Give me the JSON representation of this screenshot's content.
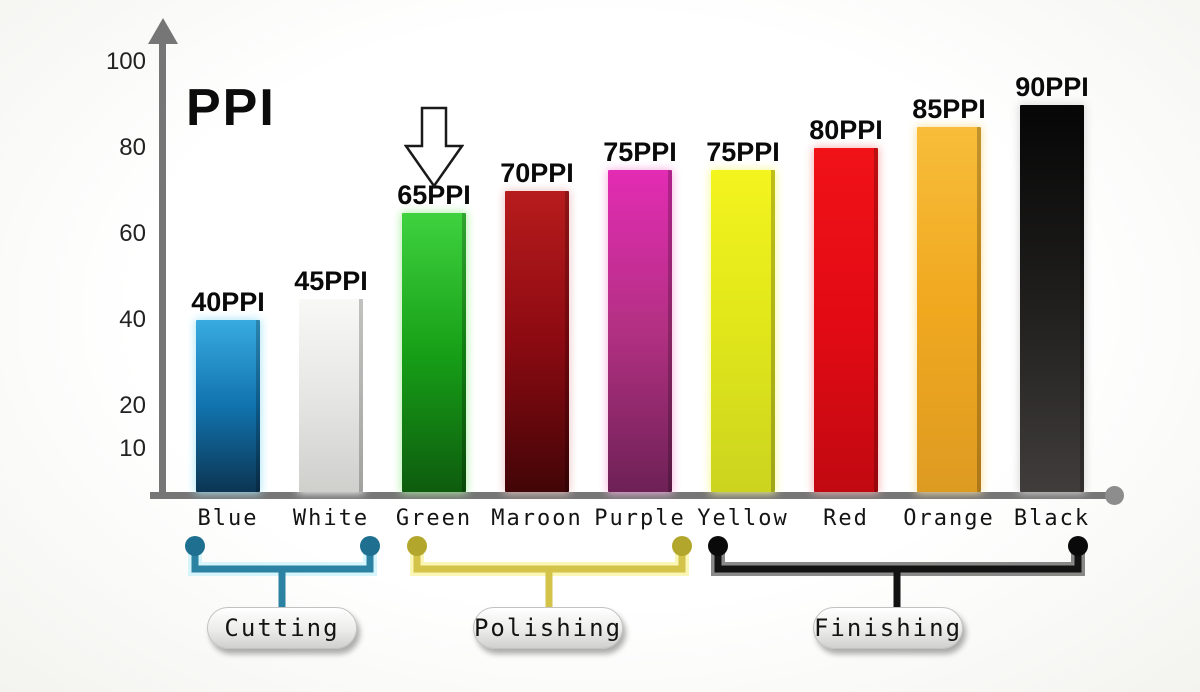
{
  "chart_data": {
    "type": "bar",
    "title": "PPI",
    "ylabel": "PPI",
    "xlabel": "",
    "ylim": [
      0,
      100
    ],
    "y_ticks": [
      100,
      80,
      60,
      40,
      20,
      10
    ],
    "grid": false,
    "legend_position": "none",
    "categories": [
      "Blue",
      "White",
      "Green",
      "Maroon",
      "Purple",
      "Yellow",
      "Red",
      "Orange",
      "Black"
    ],
    "values": [
      40,
      45,
      65,
      70,
      75,
      75,
      80,
      85,
      90
    ],
    "bars": [
      {
        "name": "Blue",
        "value": 40,
        "label": "40PPI",
        "color_top": "#38abdf",
        "color_mid": "#1173ae",
        "color_bottom": "#0c3553",
        "glow": "#aee7f8"
      },
      {
        "name": "White",
        "value": 45,
        "label": "45PPI",
        "color_top": "#f8f8f6",
        "color_mid": "#e6e6e4",
        "color_bottom": "#cfcfcc",
        "glow": "#ffffff"
      },
      {
        "name": "Green",
        "value": 65,
        "label": "65PPI",
        "color_top": "#3fd23f",
        "color_mid": "#17a017",
        "color_bottom": "#0e5c0e",
        "glow": "#b0f0a8"
      },
      {
        "name": "Maroon",
        "value": 70,
        "label": "70PPI",
        "color_top": "#b71c1c",
        "color_mid": "#8c0a12",
        "color_bottom": "#420507",
        "glow": "#eec8c8"
      },
      {
        "name": "Purple",
        "value": 75,
        "label": "75PPI",
        "color_top": "#e32cb4",
        "color_mid": "#b23082",
        "color_bottom": "#6e2156",
        "glow": "#f9b6e4"
      },
      {
        "name": "Yellow",
        "value": 75,
        "label": "75PPI",
        "color_top": "#f4f41e",
        "color_mid": "#e0e61a",
        "color_bottom": "#ccd41f",
        "glow": "#fafa9c"
      },
      {
        "name": "Red",
        "value": 80,
        "label": "80PPI",
        "color_top": "#f01217",
        "color_mid": "#e30a14",
        "color_bottom": "#c10911",
        "glow": "#f8b4b4"
      },
      {
        "name": "Orange",
        "value": 85,
        "label": "85PPI",
        "color_top": "#f8bd3a",
        "color_mid": "#f0a81f",
        "color_bottom": "#de9b22",
        "glow": "#fce4a6"
      },
      {
        "name": "Black",
        "value": 90,
        "label": "90PPI",
        "color_top": "#060606",
        "color_mid": "#1f1e1d",
        "color_bottom": "#403d3c",
        "glow": "#d8d8d8"
      }
    ],
    "annotations": [
      {
        "type": "down-arrow",
        "target": "Green",
        "style": "hollow-outline"
      }
    ],
    "groups": [
      {
        "label": "Cutting",
        "members": [
          "Blue",
          "White"
        ],
        "color": "#2b82a2",
        "glow": "#b6ecfa",
        "dot_color": "#1e6f90"
      },
      {
        "label": "Polishing",
        "members": [
          "Green",
          "Maroon",
          "Purple"
        ],
        "color": "#d3c348",
        "glow": "#f4ee7a",
        "dot_color": "#b3a62c"
      },
      {
        "label": "Finishing",
        "members": [
          "Yellow",
          "Red",
          "Orange",
          "Black"
        ],
        "color": "#121212",
        "glow": "#2a2a2a",
        "dot_color": "#0a0a0a"
      }
    ],
    "axis_color": "#767676"
  }
}
